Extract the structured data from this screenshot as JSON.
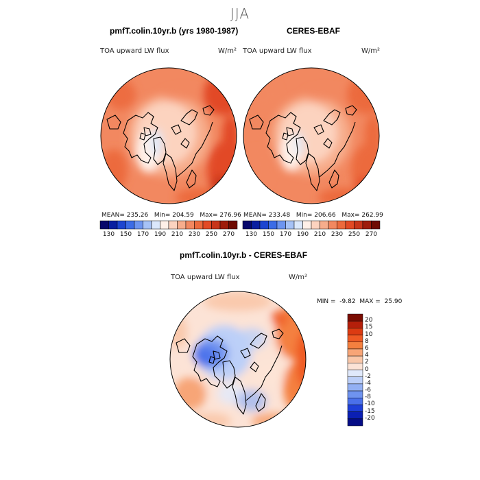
{
  "season": "JJA",
  "panels": {
    "model": {
      "title": "pmfT.colin.10yr.b (yrs 1980-1987)",
      "variable": "TOA upward LW flux",
      "units": "W/m²",
      "mean": "235.26",
      "min": "204.59",
      "max": "276.96"
    },
    "obs": {
      "title": "CERES-EBAF",
      "variable": "TOA upward LW flux",
      "units": "W/m²",
      "mean": "233.48",
      "min": "206.66",
      "max": "262.99"
    },
    "diff": {
      "title": "pmfT.colin.10yr.b - CERES-EBAF",
      "variable": "TOA upward LW flux",
      "units": "W/m²",
      "min": "-9.82",
      "max": "25.90"
    }
  },
  "labels": {
    "mean": "MEAN=",
    "min": "Min=",
    "max": "Max=",
    "min_upper": "MIN =",
    "max_upper": "MAX ="
  },
  "abs_colorbar": {
    "ticks": [
      "130",
      "150",
      "170",
      "190",
      "210",
      "230",
      "250",
      "270"
    ],
    "colors": [
      "#08086b",
      "#0a1fa0",
      "#1d45d0",
      "#3c6ce6",
      "#6d95f0",
      "#a6c2f6",
      "#dbe8fb",
      "#fff0e8",
      "#fcd3bf",
      "#f7ad8c",
      "#f28860",
      "#ec6a3d",
      "#e24a25",
      "#c8351a",
      "#9e1c0b",
      "#6f0b02"
    ]
  },
  "diff_colorbar": {
    "ticks": [
      "20",
      "15",
      "10",
      "8",
      "6",
      "4",
      "2",
      "0",
      "-2",
      "-4",
      "-6",
      "-8",
      "-10",
      "-15",
      "-20"
    ],
    "colors": [
      "#7a0d02",
      "#b51f0a",
      "#dc3b12",
      "#ef5a24",
      "#f4803f",
      "#f7a577",
      "#f9c7a9",
      "#fce3d6",
      "#e0e9fb",
      "#bccff8",
      "#93b0f3",
      "#6f93ef",
      "#4a70ea",
      "#1e3fd8",
      "#0b1fb3",
      "#050d86"
    ]
  }
}
